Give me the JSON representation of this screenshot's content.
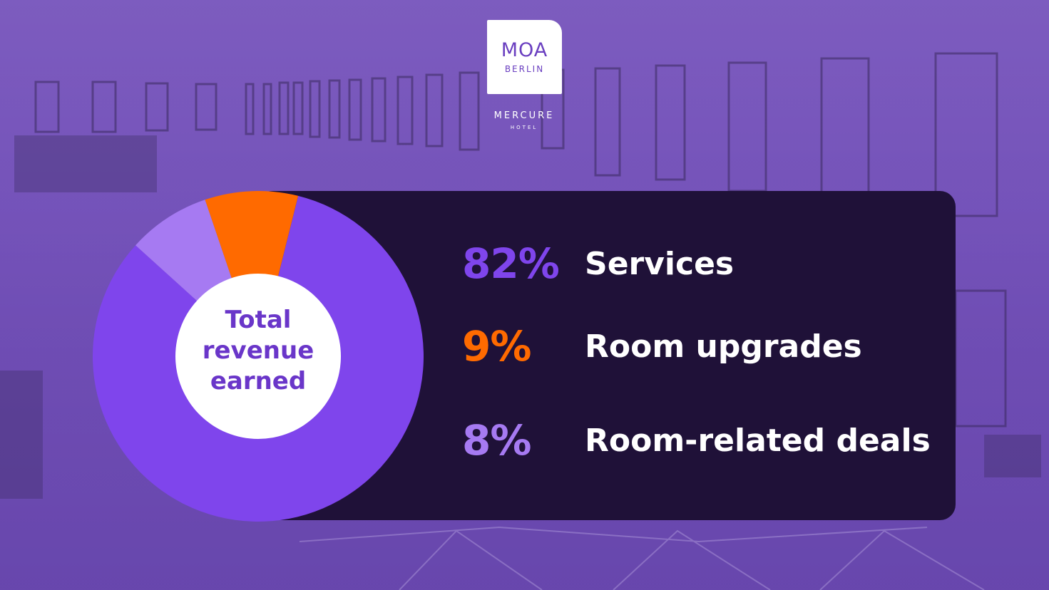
{
  "logo": {
    "brand": "MOA",
    "city": "BERLIN",
    "chain": "MERCURE",
    "chain_sub": "HOTEL"
  },
  "colors": {
    "services": "#7f45ec",
    "room_upgrades": "#ff6a00",
    "room_related_deals": "#a67af2",
    "panel": "#1f1138",
    "center_text": "#6a36c9"
  },
  "chart_data": {
    "type": "pie",
    "center_label": [
      "Total",
      "revenue",
      "earned"
    ],
    "categories": [
      "Services",
      "Room upgrades",
      "Room-related deals"
    ],
    "values": [
      82,
      9,
      8
    ],
    "value_labels": [
      "82%",
      "9%",
      "8%"
    ]
  }
}
